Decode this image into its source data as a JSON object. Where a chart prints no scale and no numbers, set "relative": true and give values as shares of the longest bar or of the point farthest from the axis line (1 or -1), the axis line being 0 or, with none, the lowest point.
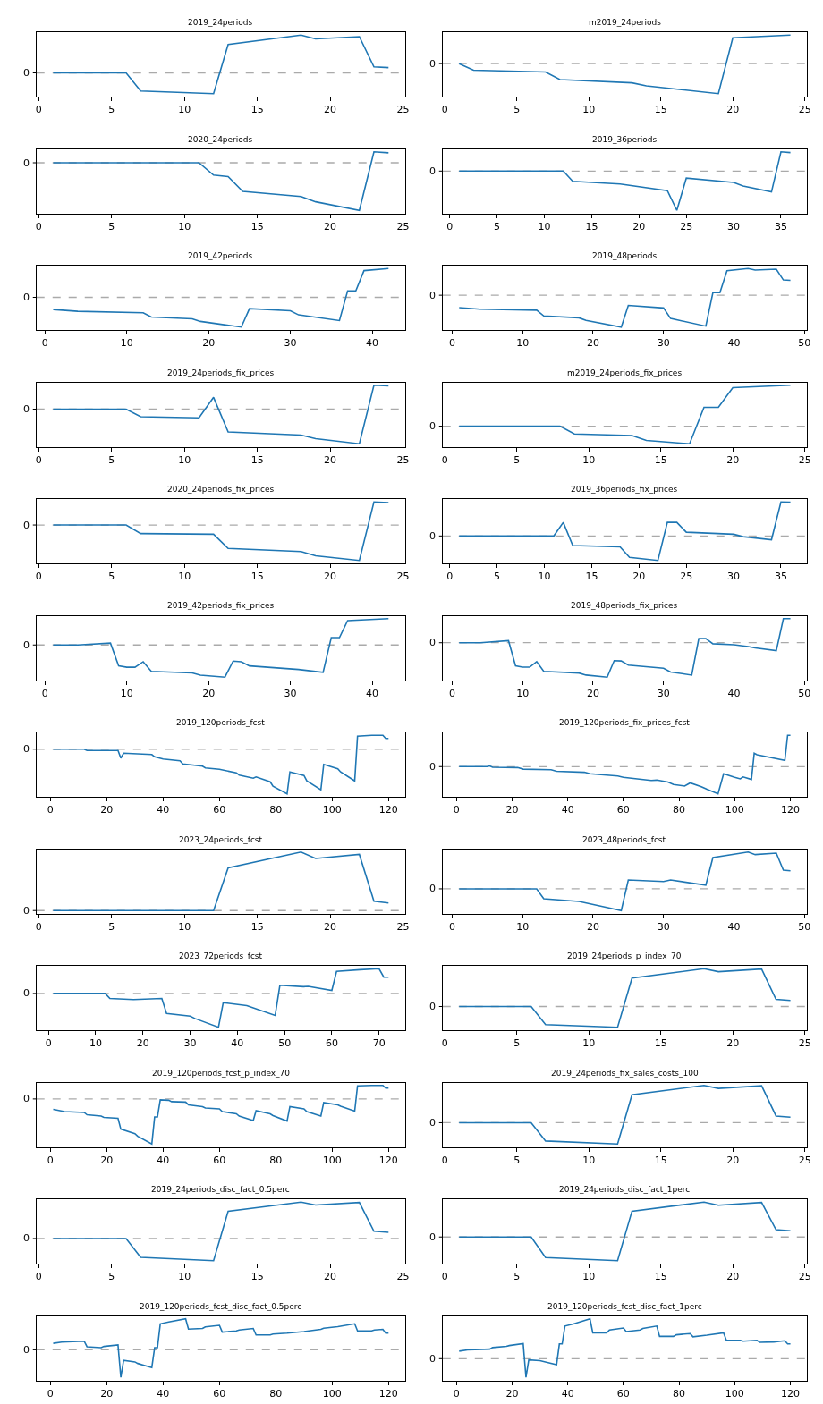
{
  "chart_data": [
    {
      "type": "line",
      "title": "2019_24periods",
      "relative": true,
      "xlim": [
        -0.15,
        25.15
      ],
      "xticks": [
        0,
        5,
        10,
        15,
        20,
        25
      ],
      "ref_lines": [
        {
          "axis": "y",
          "value": 0,
          "label": "0",
          "color": "#aaaaaa",
          "line_style": "dashed"
        }
      ],
      "series": [
        {
          "color": "#1f77b4",
          "x": [
            1,
            6,
            7,
            12,
            13,
            18,
            19,
            22,
            23,
            24
          ],
          "values": [
            0,
            0,
            -0.48,
            -0.55,
            0.75,
            1,
            0.9,
            0.96,
            0.16,
            0.14
          ]
        }
      ]
    },
    {
      "type": "line",
      "title": "m2019_24periods",
      "relative": true,
      "xlim": [
        -0.15,
        25.15
      ],
      "xticks": [
        0,
        5,
        10,
        15,
        20,
        25
      ],
      "ref_lines": [
        {
          "axis": "y",
          "value": 0,
          "label": "0",
          "color": "#aaaaaa",
          "line_style": "dashed"
        }
      ],
      "series": [
        {
          "color": "#1f77b4",
          "x": [
            1,
            2,
            7,
            8,
            13,
            14,
            19,
            20,
            24
          ],
          "values": [
            0,
            -0.22,
            -0.28,
            -0.53,
            -0.64,
            -0.74,
            -1,
            0.86,
            0.95
          ]
        }
      ]
    },
    {
      "type": "line",
      "title": "2020_24periods",
      "relative": true,
      "xlim": [
        -0.15,
        25.15
      ],
      "xticks": [
        0,
        5,
        10,
        15,
        20,
        25
      ],
      "ref_lines": [
        {
          "axis": "y",
          "value": 0,
          "label": "0",
          "color": "#aaaaaa",
          "line_style": "dashed"
        }
      ],
      "series": [
        {
          "color": "#1f77b4",
          "x": [
            1,
            11,
            12,
            13,
            14,
            18,
            19,
            22,
            23,
            24
          ],
          "values": [
            0,
            0,
            -0.26,
            -0.29,
            -0.6,
            -0.71,
            -0.82,
            -1,
            0.23,
            0.21
          ]
        }
      ]
    },
    {
      "type": "line",
      "title": "2019_36periods",
      "relative": true,
      "xlim": [
        -0.75,
        37.75
      ],
      "xticks": [
        0,
        5,
        10,
        15,
        20,
        25,
        30,
        35
      ],
      "ref_lines": [
        {
          "axis": "y",
          "value": 0,
          "label": "0",
          "color": "#aaaaaa",
          "line_style": "dashed"
        }
      ],
      "series": [
        {
          "color": "#1f77b4",
          "x": [
            1,
            12,
            13,
            18,
            23,
            24,
            25,
            30,
            31,
            34,
            35,
            36
          ],
          "values": [
            0,
            0,
            -0.26,
            -0.33,
            -0.5,
            -1,
            -0.18,
            -0.29,
            -0.38,
            -0.53,
            0.49,
            0.47
          ]
        }
      ]
    },
    {
      "type": "line",
      "title": "2019_42periods",
      "relative": true,
      "xlim": [
        -1.05,
        44.05
      ],
      "xticks": [
        0,
        10,
        20,
        30,
        40
      ],
      "ref_lines": [
        {
          "axis": "y",
          "value": 0,
          "label": "0",
          "color": "#aaaaaa",
          "line_style": "dashed"
        }
      ],
      "series": [
        {
          "color": "#1f77b4",
          "x": [
            1,
            4,
            12,
            13,
            18,
            19,
            24,
            25,
            30,
            31,
            36,
            37,
            38,
            39,
            42
          ],
          "values": [
            -0.41,
            -0.47,
            -0.52,
            -0.66,
            -0.72,
            -0.81,
            -1,
            -0.38,
            -0.45,
            -0.59,
            -0.78,
            0.22,
            0.22,
            0.9,
            0.97
          ]
        }
      ]
    },
    {
      "type": "line",
      "title": "2019_48periods",
      "relative": true,
      "xlim": [
        -1.35,
        50.35
      ],
      "xticks": [
        0,
        10,
        20,
        30,
        40,
        50
      ],
      "ref_lines": [
        {
          "axis": "y",
          "value": 0,
          "label": "0",
          "color": "#aaaaaa",
          "line_style": "dashed"
        }
      ],
      "series": [
        {
          "color": "#1f77b4",
          "x": [
            1,
            4,
            12,
            13,
            18,
            19,
            24,
            25,
            30,
            31,
            36,
            37,
            38,
            39,
            42,
            43,
            46,
            47,
            48
          ],
          "values": [
            -0.39,
            -0.44,
            -0.47,
            -0.65,
            -0.71,
            -0.79,
            -1,
            -0.32,
            -0.4,
            -0.73,
            -0.97,
            0.08,
            0.08,
            0.77,
            0.84,
            0.79,
            0.82,
            0.48,
            0.47
          ]
        }
      ]
    },
    {
      "type": "line",
      "title": "2019_24periods_fix_prices",
      "relative": true,
      "xlim": [
        -0.15,
        25.15
      ],
      "xticks": [
        0,
        5,
        10,
        15,
        20,
        25
      ],
      "ref_lines": [
        {
          "axis": "y",
          "value": 0,
          "label": "0",
          "color": "#aaaaaa",
          "line_style": "dashed"
        }
      ],
      "series": [
        {
          "color": "#1f77b4",
          "x": [
            1,
            6,
            7,
            11,
            12,
            13,
            18,
            19,
            22,
            23,
            24
          ],
          "values": [
            0,
            0,
            -0.22,
            -0.25,
            0.34,
            -0.66,
            -0.75,
            -0.85,
            -1,
            0.69,
            0.67
          ]
        }
      ]
    },
    {
      "type": "line",
      "title": "m2019_24periods_fix_prices",
      "relative": true,
      "xlim": [
        -0.15,
        25.15
      ],
      "xticks": [
        0,
        5,
        10,
        15,
        20,
        25
      ],
      "ref_lines": [
        {
          "axis": "y",
          "value": 0,
          "label": "0",
          "color": "#aaaaaa",
          "line_style": "dashed"
        }
      ],
      "series": [
        {
          "color": "#1f77b4",
          "x": [
            1,
            8,
            9,
            13,
            14,
            17,
            18,
            19,
            20,
            24
          ],
          "values": [
            0,
            0,
            -0.19,
            -0.23,
            -0.35,
            -0.43,
            0.46,
            0.46,
            0.94,
            1
          ]
        }
      ]
    },
    {
      "type": "line",
      "title": "2020_24periods_fix_prices",
      "relative": true,
      "xlim": [
        -0.15,
        25.15
      ],
      "xticks": [
        0,
        5,
        10,
        15,
        20,
        25
      ],
      "ref_lines": [
        {
          "axis": "y",
          "value": 0,
          "label": "0",
          "color": "#aaaaaa",
          "line_style": "dashed"
        }
      ],
      "series": [
        {
          "color": "#1f77b4",
          "x": [
            1,
            6,
            7,
            12,
            13,
            18,
            19,
            22,
            23,
            24
          ],
          "values": [
            0,
            0,
            -0.24,
            -0.26,
            -0.66,
            -0.75,
            -0.87,
            -1,
            0.65,
            0.63
          ]
        }
      ]
    },
    {
      "type": "line",
      "title": "2019_36periods_fix_prices",
      "relative": true,
      "xlim": [
        -0.75,
        37.75
      ],
      "xticks": [
        0,
        5,
        10,
        15,
        20,
        25,
        30,
        35
      ],
      "ref_lines": [
        {
          "axis": "y",
          "value": 0,
          "label": "0",
          "color": "#aaaaaa",
          "line_style": "dashed"
        }
      ],
      "series": [
        {
          "color": "#1f77b4",
          "x": [
            1,
            11,
            12,
            13,
            18,
            19,
            22,
            23,
            24,
            25,
            30,
            31,
            34,
            35,
            36
          ],
          "values": [
            0,
            0,
            0.4,
            -0.28,
            -0.32,
            -0.63,
            -0.72,
            0.4,
            0.4,
            0.11,
            0.05,
            -0.02,
            -0.11,
            1,
            0.99
          ]
        }
      ]
    },
    {
      "type": "line",
      "title": "2019_42periods_fix_prices",
      "relative": true,
      "xlim": [
        -1.05,
        44.05
      ],
      "xticks": [
        0,
        10,
        20,
        30,
        40
      ],
      "ref_lines": [
        {
          "axis": "y",
          "value": 0,
          "label": "0",
          "color": "#aaaaaa",
          "line_style": "dashed"
        }
      ],
      "series": [
        {
          "color": "#1f77b4",
          "x": [
            1,
            4,
            8,
            9,
            10,
            11,
            12,
            13,
            18,
            19,
            22,
            23,
            24,
            25,
            31,
            34,
            35,
            36,
            37,
            42
          ],
          "values": [
            0,
            0,
            0.06,
            -0.65,
            -0.69,
            -0.69,
            -0.52,
            -0.82,
            -0.87,
            -0.94,
            -1,
            -0.5,
            -0.52,
            -0.65,
            -0.76,
            -0.85,
            0.23,
            0.23,
            0.76,
            0.82
          ]
        }
      ]
    },
    {
      "type": "line",
      "title": "2019_48periods_fix_prices",
      "relative": true,
      "xlim": [
        -1.35,
        50.35
      ],
      "xticks": [
        0,
        10,
        20,
        30,
        40,
        50
      ],
      "ref_lines": [
        {
          "axis": "y",
          "value": 0,
          "label": "0",
          "color": "#aaaaaa",
          "line_style": "dashed"
        }
      ],
      "series": [
        {
          "color": "#1f77b4",
          "x": [
            1,
            4,
            8,
            9,
            10,
            11,
            12,
            13,
            18,
            19,
            22,
            23,
            24,
            25,
            30,
            31,
            34,
            35,
            36,
            37,
            40,
            42,
            43,
            46,
            47,
            48
          ],
          "values": [
            0,
            0,
            0.06,
            -0.67,
            -0.71,
            -0.71,
            -0.55,
            -0.83,
            -0.88,
            -0.94,
            -1,
            -0.52,
            -0.53,
            -0.65,
            -0.74,
            -0.85,
            -0.94,
            0.12,
            0.12,
            -0.03,
            -0.06,
            -0.11,
            -0.15,
            -0.23,
            0.7,
            0.7
          ]
        }
      ]
    },
    {
      "type": "line",
      "title": "2019_120periods_fcst",
      "relative": true,
      "xlim": [
        -4.95,
        125.95
      ],
      "xticks": [
        0,
        20,
        40,
        60,
        80,
        100,
        120
      ],
      "ref_lines": [
        {
          "axis": "y",
          "value": 0,
          "label": "0",
          "color": "#aaaaaa",
          "line_style": "dashed"
        }
      ],
      "series": [
        {
          "color": "#1f77b4",
          "x": [
            1,
            12,
            13,
            24,
            25,
            26,
            36,
            37,
            40,
            46,
            47,
            54,
            55,
            60,
            66,
            67,
            72,
            73,
            78,
            79,
            84,
            85,
            90,
            91,
            96,
            97,
            102,
            103,
            108,
            109,
            114,
            118,
            119,
            120
          ],
          "values": [
            0,
            0,
            -0.03,
            -0.03,
            -0.2,
            -0.09,
            -0.12,
            -0.17,
            -0.22,
            -0.26,
            -0.33,
            -0.38,
            -0.42,
            -0.45,
            -0.53,
            -0.58,
            -0.65,
            -0.62,
            -0.73,
            -0.83,
            -1,
            -0.51,
            -0.59,
            -0.71,
            -0.91,
            -0.34,
            -0.44,
            -0.51,
            -0.71,
            0.29,
            0.31,
            0.31,
            0.24,
            0.24
          ]
        }
      ]
    },
    {
      "type": "line",
      "title": "2019_120periods_fix_prices_fcst",
      "relative": true,
      "xlim": [
        -4.95,
        125.95
      ],
      "xticks": [
        0,
        20,
        40,
        60,
        80,
        100,
        120
      ],
      "ref_lines": [
        {
          "axis": "y",
          "value": 0,
          "label": "0",
          "color": "#aaaaaa",
          "line_style": "dashed"
        }
      ],
      "series": [
        {
          "color": "#1f77b4",
          "x": [
            1,
            11,
            12,
            13,
            22,
            24,
            34,
            36,
            46,
            48,
            58,
            60,
            70,
            72,
            76,
            78,
            82,
            84,
            88,
            90,
            94,
            96,
            100,
            102,
            103,
            106,
            107,
            108,
            118,
            119,
            120
          ],
          "values": [
            0,
            0,
            0.02,
            -0.02,
            -0.03,
            -0.08,
            -0.1,
            -0.15,
            -0.18,
            -0.23,
            -0.3,
            -0.34,
            -0.44,
            -0.43,
            -0.49,
            -0.57,
            -0.62,
            -0.52,
            -0.64,
            -0.72,
            -0.87,
            -0.23,
            -0.34,
            -0.39,
            -0.33,
            -0.41,
            0.43,
            0.38,
            0.2,
            1,
            1
          ]
        }
      ]
    },
    {
      "type": "line",
      "title": "2023_24periods_fcst",
      "relative": true,
      "xlim": [
        -0.15,
        25.15
      ],
      "xticks": [
        0,
        5,
        10,
        15,
        20,
        25
      ],
      "ref_lines": [
        {
          "axis": "y",
          "value": 0,
          "label": "0",
          "color": "#aaaaaa",
          "line_style": "dashed"
        }
      ],
      "series": [
        {
          "color": "#1f77b4",
          "x": [
            1,
            12,
            13,
            18,
            19,
            22,
            23,
            24
          ],
          "values": [
            0,
            0,
            0.73,
            1,
            0.89,
            0.96,
            0.16,
            0.13
          ]
        }
      ]
    },
    {
      "type": "line",
      "title": "2023_48periods_fcst",
      "relative": true,
      "xlim": [
        -1.35,
        50.35
      ],
      "xticks": [
        0,
        10,
        20,
        30,
        40,
        50
      ],
      "ref_lines": [
        {
          "axis": "y",
          "value": 0,
          "label": "0",
          "color": "#aaaaaa",
          "line_style": "dashed"
        }
      ],
      "series": [
        {
          "color": "#1f77b4",
          "x": [
            1,
            12,
            13,
            18,
            24,
            25,
            30,
            31,
            36,
            37,
            42,
            43,
            46,
            47,
            48
          ],
          "values": [
            0,
            0,
            -0.27,
            -0.34,
            -0.59,
            0.24,
            0.2,
            0.24,
            0.1,
            0.85,
            1,
            0.93,
            0.97,
            0.51,
            0.49
          ]
        }
      ]
    },
    {
      "type": "line",
      "title": "2023_72periods_fcst",
      "relative": true,
      "xlim": [
        -2.55,
        75.55
      ],
      "xticks": [
        0,
        10,
        20,
        30,
        40,
        50,
        60,
        70
      ],
      "ref_lines": [
        {
          "axis": "y",
          "value": 0,
          "label": "0",
          "color": "#aaaaaa",
          "line_style": "dashed"
        }
      ],
      "series": [
        {
          "color": "#1f77b4",
          "x": [
            1,
            12,
            13,
            18,
            24,
            25,
            30,
            31,
            36,
            37,
            42,
            48,
            49,
            54,
            55,
            60,
            61,
            66,
            70,
            71,
            72
          ],
          "values": [
            0,
            0,
            -0.15,
            -0.18,
            -0.15,
            -0.59,
            -0.67,
            -0.74,
            -1,
            -0.27,
            -0.36,
            -0.65,
            0.24,
            0.2,
            0.21,
            0.09,
            0.65,
            0.7,
            0.73,
            0.48,
            0.48
          ]
        }
      ]
    },
    {
      "type": "line",
      "title": "2019_24periods_p_index_70",
      "relative": true,
      "xlim": [
        -0.15,
        25.15
      ],
      "xticks": [
        0,
        5,
        10,
        15,
        20,
        25
      ],
      "ref_lines": [
        {
          "axis": "y",
          "value": 0,
          "label": "0",
          "color": "#aaaaaa",
          "line_style": "dashed"
        }
      ],
      "series": [
        {
          "color": "#1f77b4",
          "x": [
            1,
            6,
            7,
            12,
            13,
            18,
            19,
            22,
            23,
            24
          ],
          "values": [
            0,
            0,
            -0.48,
            -0.55,
            0.75,
            1,
            0.92,
            0.99,
            0.19,
            0.16
          ]
        }
      ]
    },
    {
      "type": "line",
      "title": "2019_120periods_fcst_p_index_70",
      "relative": true,
      "xlim": [
        -4.95,
        125.95
      ],
      "xticks": [
        0,
        20,
        40,
        60,
        80,
        100,
        120
      ],
      "ref_lines": [
        {
          "axis": "y",
          "value": 0,
          "label": "0",
          "color": "#aaaaaa",
          "line_style": "dashed"
        }
      ],
      "series": [
        {
          "color": "#1f77b4",
          "x": [
            1,
            5,
            12,
            13,
            18,
            19,
            24,
            25,
            30,
            31,
            36,
            37,
            38,
            39,
            42,
            43,
            48,
            49,
            54,
            55,
            60,
            61,
            66,
            67,
            72,
            73,
            78,
            79,
            84,
            85,
            90,
            91,
            96,
            97,
            102,
            103,
            108,
            109,
            114,
            118,
            119,
            120
          ],
          "values": [
            -0.23,
            -0.28,
            -0.3,
            -0.35,
            -0.38,
            -0.41,
            -0.43,
            -0.67,
            -0.77,
            -0.83,
            -1,
            -0.4,
            -0.4,
            -0.02,
            -0.03,
            -0.06,
            -0.07,
            -0.13,
            -0.17,
            -0.2,
            -0.22,
            -0.28,
            -0.33,
            -0.38,
            -0.48,
            -0.26,
            -0.33,
            -0.37,
            -0.49,
            -0.17,
            -0.22,
            -0.28,
            -0.38,
            -0.08,
            -0.13,
            -0.16,
            -0.27,
            0.29,
            0.3,
            0.3,
            0.24,
            0.24
          ]
        }
      ]
    },
    {
      "type": "line",
      "title": "2019_24periods_fix_sales_costs_100",
      "relative": true,
      "xlim": [
        -0.15,
        25.15
      ],
      "xticks": [
        0,
        5,
        10,
        15,
        20,
        25
      ],
      "ref_lines": [
        {
          "axis": "y",
          "value": 0,
          "label": "0",
          "color": "#aaaaaa",
          "line_style": "dashed"
        }
      ],
      "series": [
        {
          "color": "#1f77b4",
          "x": [
            1,
            6,
            7,
            12,
            13,
            18,
            19,
            22,
            23,
            24
          ],
          "values": [
            0,
            0,
            -0.49,
            -0.57,
            0.75,
            1,
            0.92,
            0.99,
            0.18,
            0.15
          ]
        }
      ]
    },
    {
      "type": "line",
      "title": "2019_24periods_disc_fact_0.5perc",
      "relative": true,
      "xlim": [
        -0.15,
        25.15
      ],
      "xticks": [
        0,
        5,
        10,
        15,
        20,
        25
      ],
      "ref_lines": [
        {
          "axis": "y",
          "value": 0,
          "label": "0",
          "color": "#aaaaaa",
          "line_style": "dashed"
        }
      ],
      "series": [
        {
          "color": "#1f77b4",
          "x": [
            1,
            6,
            7,
            12,
            13,
            18,
            19,
            22,
            23,
            24
          ],
          "values": [
            0,
            0,
            -0.52,
            -0.61,
            0.75,
            1,
            0.92,
            0.99,
            0.2,
            0.17
          ]
        }
      ]
    },
    {
      "type": "line",
      "title": "2019_24periods_disc_fact_1perc",
      "relative": true,
      "xlim": [
        -0.15,
        25.15
      ],
      "xticks": [
        0,
        5,
        10,
        15,
        20,
        25
      ],
      "ref_lines": [
        {
          "axis": "y",
          "value": 0,
          "label": "0",
          "color": "#aaaaaa",
          "line_style": "dashed"
        }
      ],
      "series": [
        {
          "color": "#1f77b4",
          "x": [
            1,
            6,
            7,
            12,
            13,
            18,
            19,
            22,
            23,
            24
          ],
          "values": [
            0,
            0,
            -0.59,
            -0.68,
            0.74,
            1,
            0.91,
            0.99,
            0.21,
            0.18
          ]
        }
      ]
    },
    {
      "type": "line",
      "title": "2019_120periods_fcst_disc_fact_0.5perc",
      "relative": true,
      "xlim": [
        -4.95,
        125.95
      ],
      "xticks": [
        0,
        20,
        40,
        60,
        80,
        100,
        120
      ],
      "ref_lines": [
        {
          "axis": "y",
          "value": 0,
          "label": "0",
          "color": "#aaaaaa",
          "line_style": "dashed"
        }
      ],
      "series": [
        {
          "color": "#1f77b4",
          "x": [
            1,
            4,
            12,
            13,
            18,
            19,
            24,
            25,
            26,
            30,
            31,
            36,
            37,
            38,
            39,
            42,
            48,
            49,
            54,
            55,
            60,
            61,
            66,
            67,
            72,
            73,
            78,
            79,
            84,
            90,
            96,
            97,
            102,
            108,
            109,
            114,
            115,
            118,
            119,
            120
          ],
          "values": [
            0.21,
            0.25,
            0.28,
            0.1,
            0.07,
            0.11,
            0.16,
            -0.89,
            -0.34,
            -0.39,
            -0.44,
            -0.57,
            0.07,
            0.07,
            0.84,
            0.9,
            1,
            0.67,
            0.69,
            0.74,
            0.79,
            0.57,
            0.61,
            0.64,
            0.69,
            0.48,
            0.48,
            0.51,
            0.54,
            0.59,
            0.66,
            0.7,
            0.75,
            0.84,
            0.61,
            0.61,
            0.64,
            0.66,
            0.54,
            0.54
          ]
        }
      ]
    },
    {
      "type": "line",
      "title": "2019_120periods_fcst_disc_fact_1perc",
      "relative": true,
      "xlim": [
        -4.95,
        125.95
      ],
      "xticks": [
        0,
        20,
        40,
        60,
        80,
        100,
        120
      ],
      "ref_lines": [
        {
          "axis": "y",
          "value": 0,
          "label": "0",
          "color": "#aaaaaa",
          "line_style": "dashed"
        }
      ],
      "series": [
        {
          "color": "#1f77b4",
          "x": [
            1,
            4,
            12,
            13,
            18,
            19,
            24,
            25,
            26,
            30,
            36,
            37,
            38,
            39,
            42,
            48,
            49,
            54,
            55,
            60,
            61,
            66,
            67,
            72,
            73,
            78,
            79,
            84,
            85,
            90,
            96,
            97,
            102,
            103,
            108,
            109,
            114,
            118,
            119,
            120
          ],
          "values": [
            0.19,
            0.22,
            0.24,
            0.28,
            0.31,
            0.33,
            0.38,
            -0.47,
            -0.03,
            -0.05,
            -0.15,
            0.37,
            0.37,
            0.82,
            0.87,
            1,
            0.65,
            0.65,
            0.72,
            0.77,
            0.68,
            0.72,
            0.76,
            0.82,
            0.56,
            0.56,
            0.6,
            0.63,
            0.55,
            0.59,
            0.65,
            0.46,
            0.46,
            0.44,
            0.46,
            0.41,
            0.42,
            0.45,
            0.37,
            0.37
          ]
        }
      ]
    }
  ]
}
